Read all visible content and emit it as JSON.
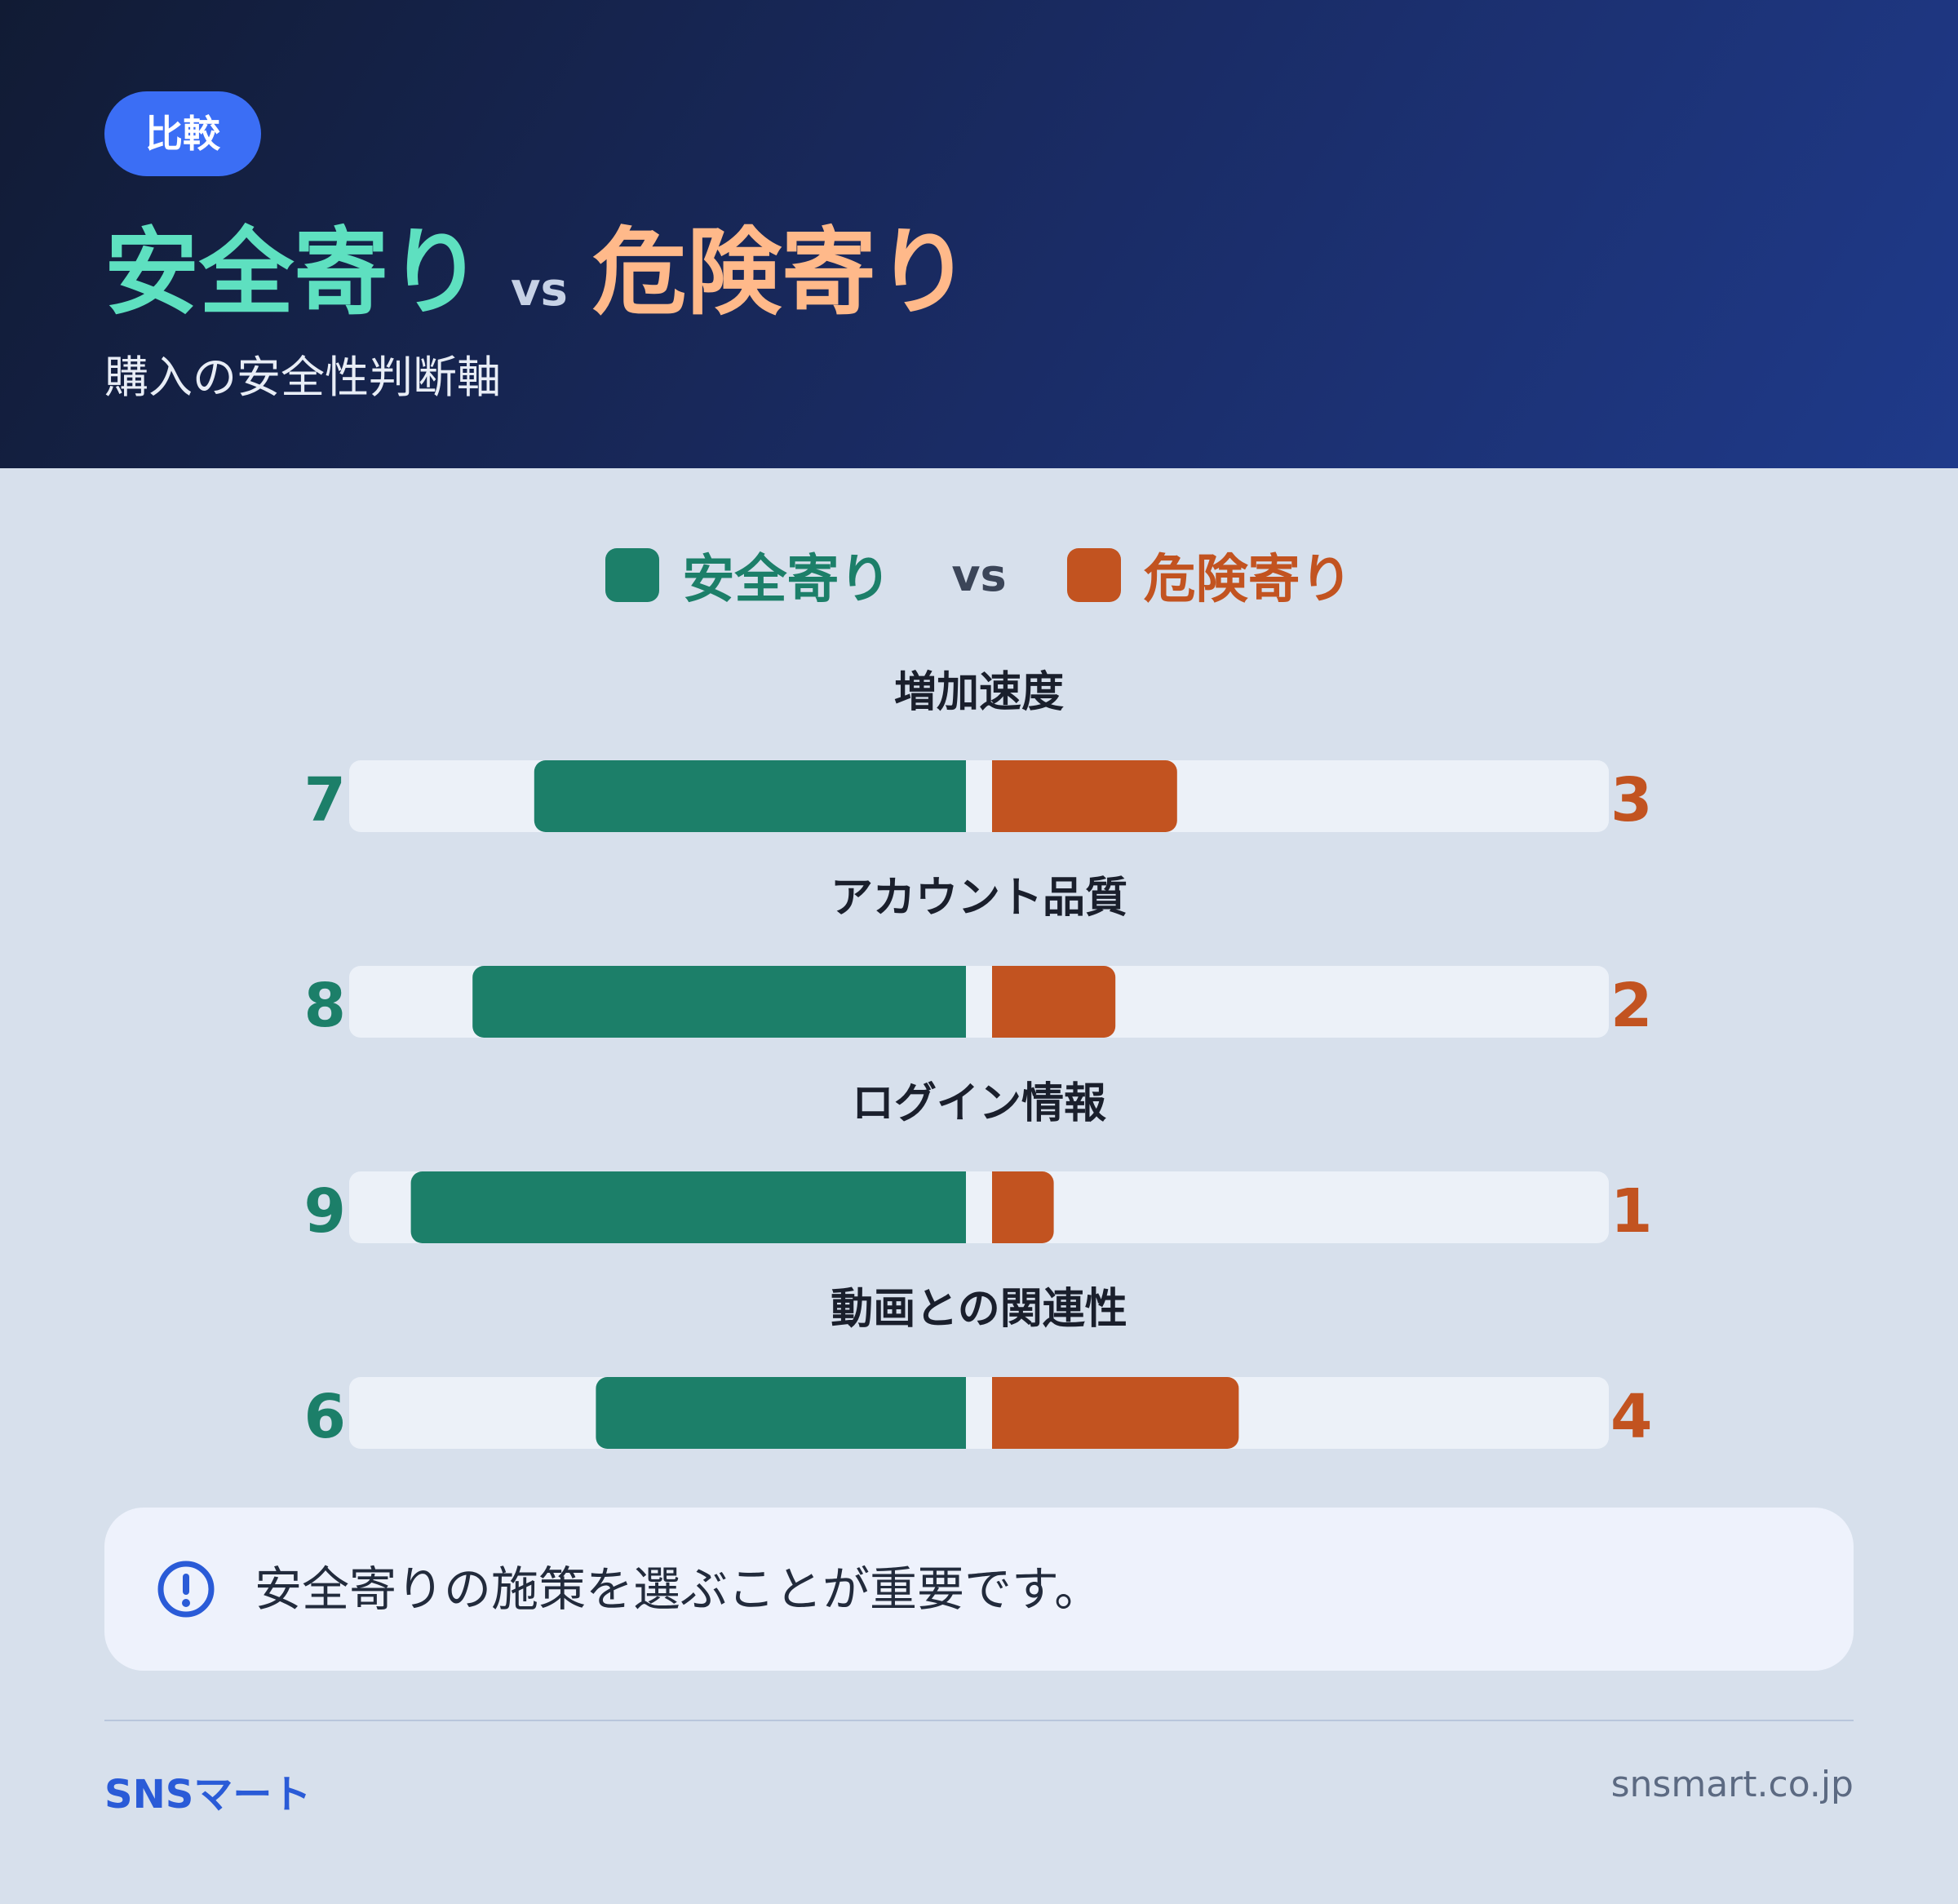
{
  "header": {
    "tag": "比較",
    "title_left": "安全寄り",
    "title_vs": "vs",
    "title_right": "危険寄り",
    "subtitle": "購入の安全性判断軸"
  },
  "legend": {
    "left_label": "安全寄り",
    "vs": "vs",
    "right_label": "危険寄り"
  },
  "colors": {
    "safe": "#1c7f69",
    "risk": "#c25320",
    "track": "#ecf1f8",
    "header_safe": "#5ee0c0",
    "header_risk": "#ffb98a"
  },
  "chart_data": {
    "type": "bar",
    "categories": [
      "増加速度",
      "アカウント品質",
      "ログイン情報",
      "動画との関連性"
    ],
    "series": [
      {
        "name": "安全寄り",
        "values": [
          7,
          8,
          9,
          6
        ]
      },
      {
        "name": "危険寄り",
        "values": [
          3,
          2,
          1,
          4
        ]
      }
    ],
    "ylim": [
      0,
      10
    ],
    "legend": "top-center"
  },
  "note": {
    "icon": "exclamation-circle-icon",
    "text": "安全寄りの施策を選ぶことが重要です。"
  },
  "footer": {
    "brand": "SNSマート",
    "domain": "snsmart.co.jp"
  }
}
